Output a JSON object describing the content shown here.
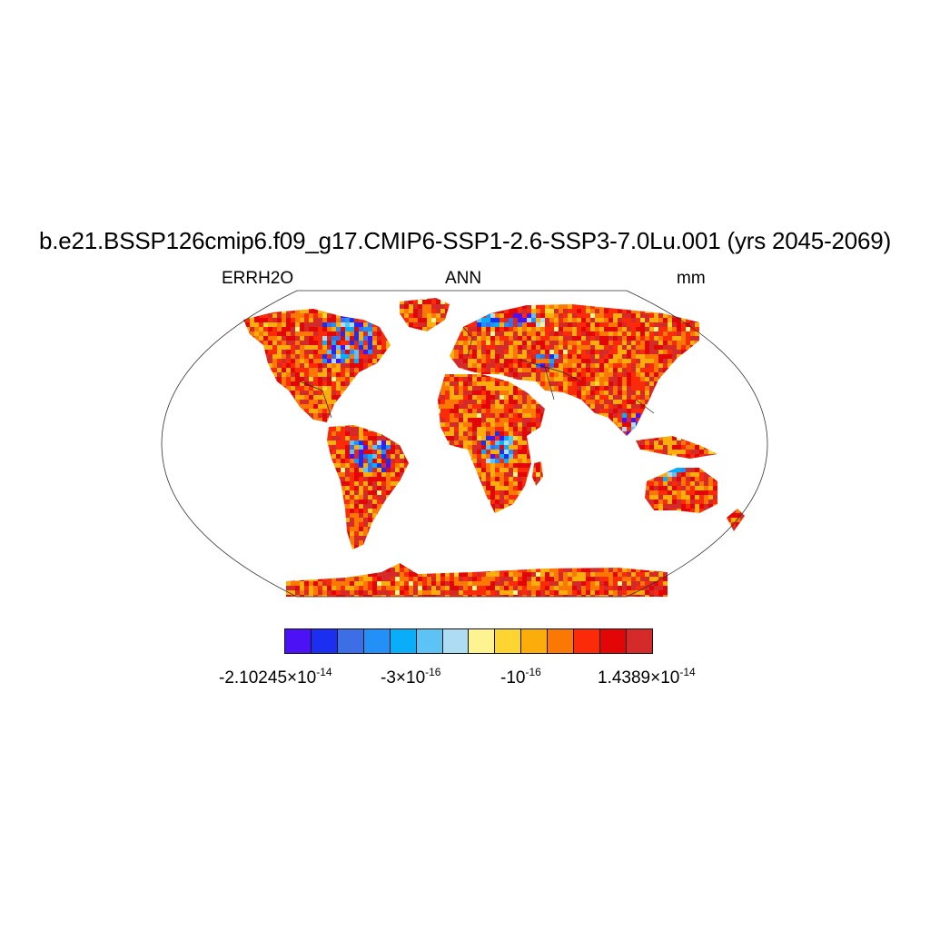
{
  "title": "b.e21.BSSP126cmip6.f09_g17.CMIP6-SSP1-2.6-SSP3-7.0Lu.001 (yrs 2045-2069)",
  "subtitle": {
    "left": "ERRH2O",
    "center": "ANN",
    "right": "mm"
  },
  "colorbar": {
    "colors": [
      "#4b12f5",
      "#1c2ff0",
      "#3c6ee6",
      "#2390f7",
      "#0aaef8",
      "#5dc3f4",
      "#aedcf2",
      "#fdf391",
      "#fdd531",
      "#fbad0b",
      "#fb7805",
      "#fb2b09",
      "#e30606",
      "#d42a2a"
    ],
    "labels": [
      {
        "mantissa": "-2.10245",
        "times": "×10",
        "exponent": "-14"
      },
      {
        "mantissa": "-3",
        "times": "×10",
        "exponent": "-16"
      },
      {
        "mantissa": "",
        "times": "-10",
        "exponent": "-16"
      },
      {
        "mantissa": "1.4389",
        "times": "×10",
        "exponent": "-14"
      }
    ]
  }
}
